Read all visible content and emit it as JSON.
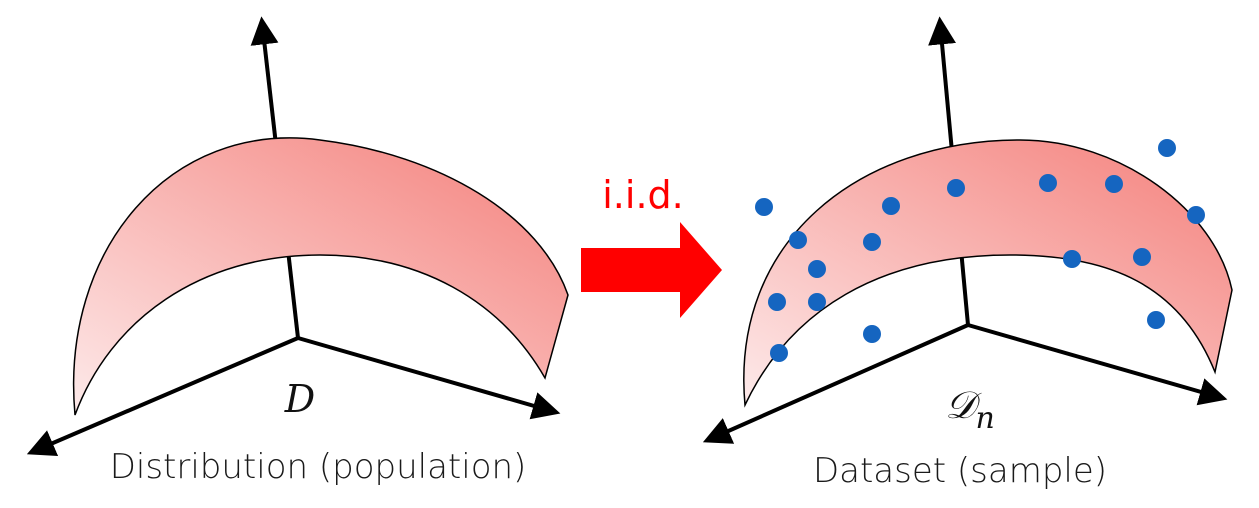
{
  "left_panel": {
    "symbol": "D",
    "caption": "Distribution (population)"
  },
  "arrow": {
    "label": "i.i.d.",
    "color": "#ff0000"
  },
  "right_panel": {
    "symbol": "𝒟",
    "symbol_subscript": "n",
    "caption": "Dataset (sample)"
  },
  "colors": {
    "surface_light": "#fdeaea",
    "surface_dark": "#f47f7a",
    "points": "#1565c0",
    "axes": "#000000"
  }
}
